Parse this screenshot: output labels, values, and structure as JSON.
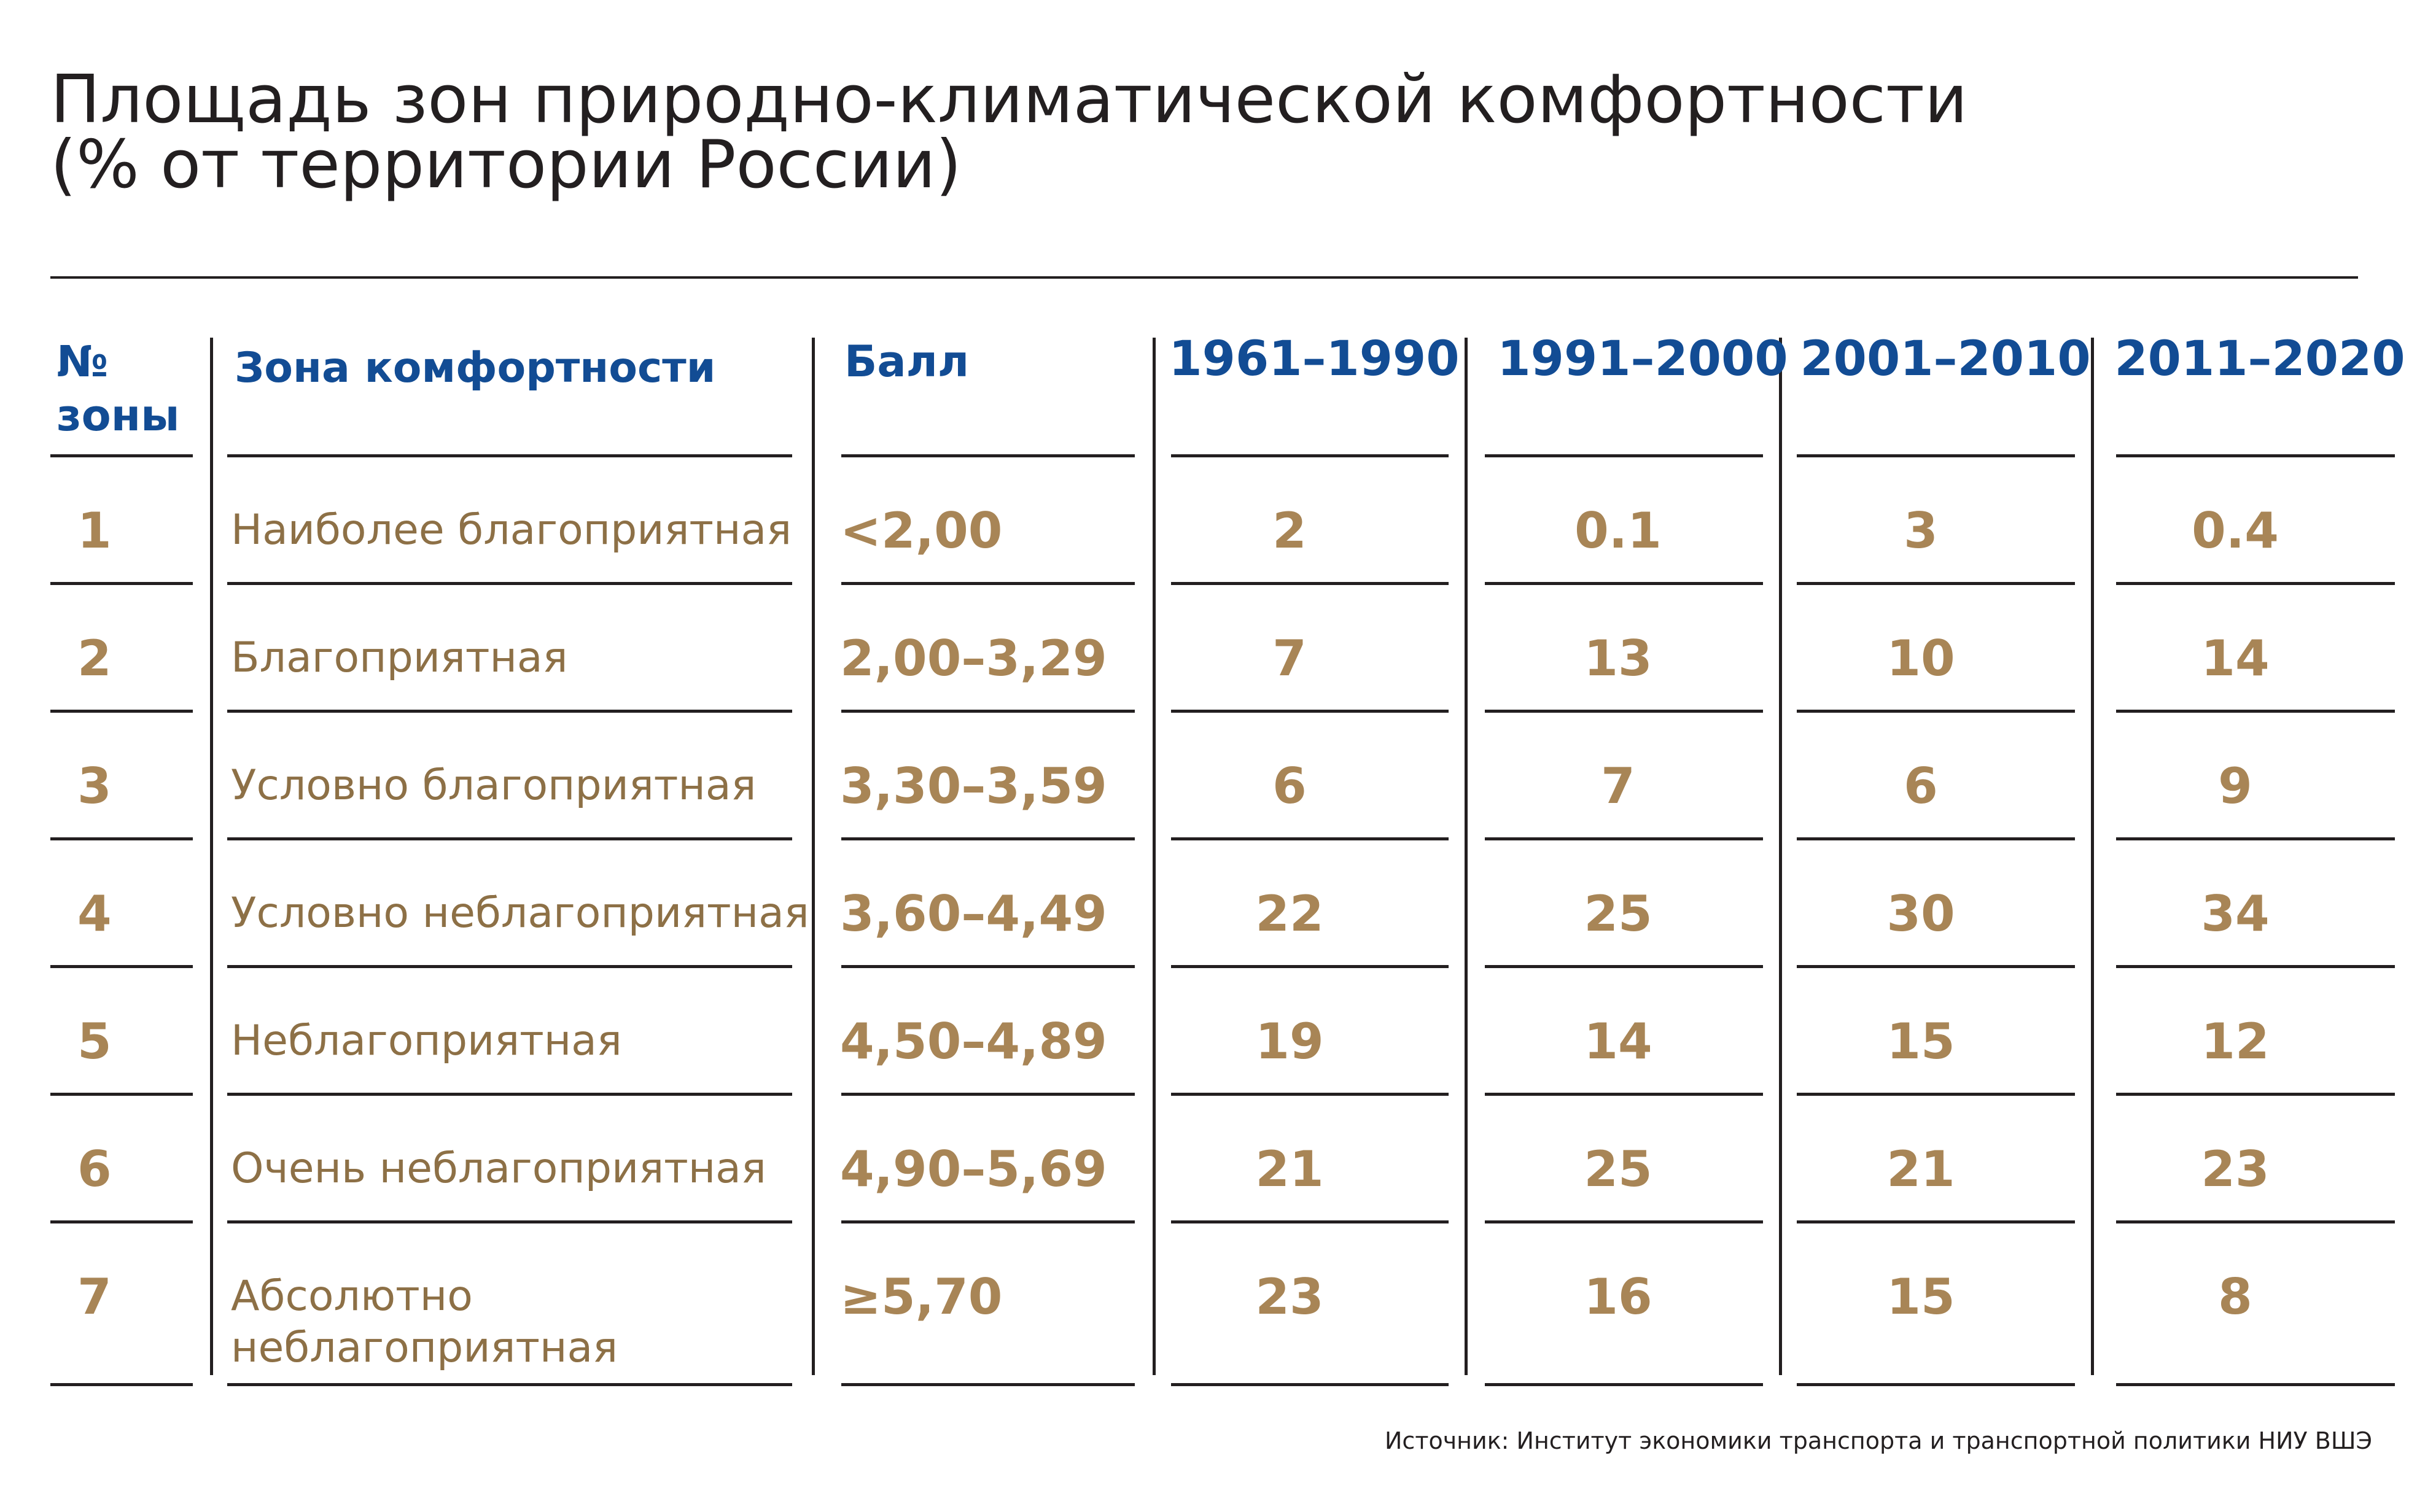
{
  "chart_data": {
    "type": "table",
    "title": "Площадь зон природно-климатической комфортности",
    "subtitle": "(% от территории России)",
    "columns": [
      "№ зоны",
      "Зона комфортности",
      "Балл",
      "1961–1990",
      "1991–2000",
      "2001–2010",
      "2011–2020"
    ],
    "rows": [
      {
        "zone": "1",
        "name": "Наиболее благоприятная",
        "score": "<2,00",
        "values": [
          "2",
          "0.1",
          "3",
          "0.4"
        ]
      },
      {
        "zone": "2",
        "name": "Благоприятная",
        "score": "2,00–3,29",
        "values": [
          "7",
          "13",
          "10",
          "14"
        ]
      },
      {
        "zone": "3",
        "name": "Условно благоприятная",
        "score": "3,30–3,59",
        "values": [
          "6",
          "7",
          "6",
          "9"
        ]
      },
      {
        "zone": "4",
        "name": "Условно неблагоприятная",
        "score": "3,60–4,49",
        "values": [
          "22",
          "25",
          "30",
          "34"
        ]
      },
      {
        "zone": "5",
        "name": "Неблагоприятная",
        "score": "4,50–4,89",
        "values": [
          "19",
          "14",
          "15",
          "12"
        ]
      },
      {
        "zone": "6",
        "name": "Очень неблагоприятная",
        "score": "4,90–5,69",
        "values": [
          "21",
          "25",
          "21",
          "23"
        ]
      },
      {
        "zone": "7",
        "name": "Абсолютно неблагоприятная",
        "name_lines": [
          "Абсолютно",
          "неблагоприятная"
        ],
        "score": "≥5,70",
        "values": [
          "23",
          "16",
          "15",
          "8"
        ]
      }
    ],
    "source": "Источник: Институт экономики транспорта и транспортной политики НИУ ВШЭ"
  },
  "header": {
    "zone_no_line1": "№",
    "zone_no_line2": "зоны"
  },
  "colors": {
    "header": "#124c94",
    "values": "#a88556",
    "names": "#8d7046",
    "rules": "#231f20"
  }
}
